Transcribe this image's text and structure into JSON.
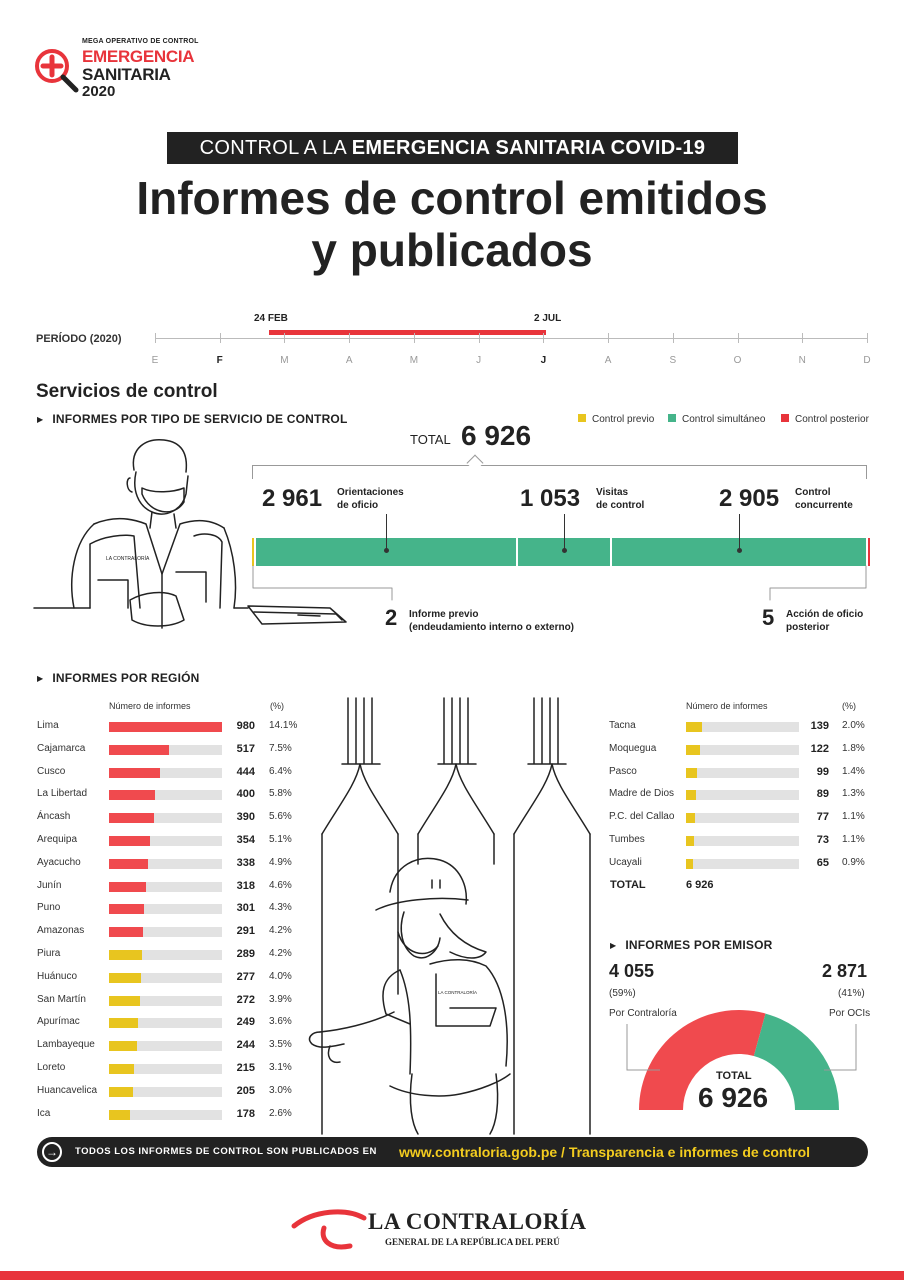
{
  "logo": {
    "mega": "MEGA OPERATIVO DE CONTROL",
    "line1": "EMERGENCIA",
    "line2": "SANITARIA",
    "year": "2020"
  },
  "banner": {
    "prefix": "CONTROL A LA ",
    "bold": "EMERGENCIA SANITARIA COVID-19"
  },
  "title": {
    "line1": "Informes de control emitidos",
    "line2": "y publicados"
  },
  "period": {
    "label": "PERÍODO  (2020)",
    "start_label": "24 FEB",
    "end_label": "2 JUL",
    "months": [
      "E",
      "F",
      "M",
      "A",
      "M",
      "J",
      "J",
      "A",
      "S",
      "O",
      "N",
      "D"
    ],
    "start_fraction": 0.1608,
    "end_fraction": 0.5492
  },
  "services": {
    "section_title": "Servicios de control",
    "head": "INFORMES POR TIPO DE SERVICIO DE CONTROL",
    "legend": [
      {
        "label": "Control previo",
        "color": "#e8c51f"
      },
      {
        "label": "Control simultáneo",
        "color": "#45b48a"
      },
      {
        "label": "Control posterior",
        "color": "#e8343b"
      }
    ],
    "total_label": "TOTAL",
    "total_value": "6 926",
    "items": [
      {
        "value": "2 961",
        "label1": "Orientaciones",
        "label2": "de oficio",
        "n": 2961
      },
      {
        "value": "1 053",
        "label1": "Visitas",
        "label2": "de control",
        "n": 1053
      },
      {
        "value": "2 905",
        "label1": "Control",
        "label2": "concurrente",
        "n": 2905
      }
    ],
    "previo": {
      "value": "2",
      "label1": "Informe previo",
      "label2": "(endeudamiento interno o externo)",
      "n": 2
    },
    "posterior": {
      "value": "5",
      "label1": "Acción de oficio",
      "label2": "posterior",
      "n": 5
    }
  },
  "regions": {
    "head": "INFORMES POR REGIÓN",
    "col_num": "Número de informes",
    "col_pct": "(%)",
    "max": 980,
    "left": [
      {
        "name": "Lima",
        "value": 980,
        "pct": "14.1%",
        "color": "#f04a4e"
      },
      {
        "name": "Cajamarca",
        "value": 517,
        "pct": "7.5%",
        "color": "#f04a4e"
      },
      {
        "name": "Cusco",
        "value": 444,
        "pct": "6.4%",
        "color": "#f04a4e"
      },
      {
        "name": "La Libertad",
        "value": 400,
        "pct": "5.8%",
        "color": "#f04a4e"
      },
      {
        "name": "Áncash",
        "value": 390,
        "pct": "5.6%",
        "color": "#f04a4e"
      },
      {
        "name": "Arequipa",
        "value": 354,
        "pct": "5.1%",
        "color": "#f04a4e"
      },
      {
        "name": "Ayacucho",
        "value": 338,
        "pct": "4.9%",
        "color": "#f04a4e"
      },
      {
        "name": "Junín",
        "value": 318,
        "pct": "4.6%",
        "color": "#f04a4e"
      },
      {
        "name": "Puno",
        "value": 301,
        "pct": "4.3%",
        "color": "#f04a4e"
      },
      {
        "name": "Amazonas",
        "value": 291,
        "pct": "4.2%",
        "color": "#f04a4e"
      },
      {
        "name": "Piura",
        "value": 289,
        "pct": "4.2%",
        "color": "#e8c51f"
      },
      {
        "name": "Huánuco",
        "value": 277,
        "pct": "4.0%",
        "color": "#e8c51f"
      },
      {
        "name": "San Martín",
        "value": 272,
        "pct": "3.9%",
        "color": "#e8c51f"
      },
      {
        "name": "Apurímac",
        "value": 249,
        "pct": "3.6%",
        "color": "#e8c51f"
      },
      {
        "name": "Lambayeque",
        "value": 244,
        "pct": "3.5%",
        "color": "#e8c51f"
      },
      {
        "name": "Loreto",
        "value": 215,
        "pct": "3.1%",
        "color": "#e8c51f"
      },
      {
        "name": "Huancavelica",
        "value": 205,
        "pct": "3.0%",
        "color": "#e8c51f"
      },
      {
        "name": "Ica",
        "value": 178,
        "pct": "2.6%",
        "color": "#e8c51f"
      }
    ],
    "right": [
      {
        "name": "Tacna",
        "value": 139,
        "pct": "2.0%",
        "color": "#e8c51f"
      },
      {
        "name": "Moquegua",
        "value": 122,
        "pct": "1.8%",
        "color": "#e8c51f"
      },
      {
        "name": "Pasco",
        "value": 99,
        "pct": "1.4%",
        "color": "#e8c51f"
      },
      {
        "name": "Madre de Dios",
        "value": 89,
        "pct": "1.3%",
        "color": "#e8c51f"
      },
      {
        "name": "P.C. del Callao",
        "value": 77,
        "pct": "1.1%",
        "color": "#e8c51f"
      },
      {
        "name": "Tumbes",
        "value": 73,
        "pct": "1.1%",
        "color": "#e8c51f"
      },
      {
        "name": "Ucayali",
        "value": 65,
        "pct": "0.9%",
        "color": "#e8c51f"
      }
    ],
    "total_label": "TOTAL",
    "total_value": "6 926"
  },
  "emisor": {
    "head": "INFORMES POR EMISOR",
    "contraloria": {
      "value": "4 055",
      "pct": "(59%)",
      "label": "Por Contraloría",
      "n": 4055,
      "color": "#f04a4e"
    },
    "ocis": {
      "value": "2 871",
      "pct": "(41%)",
      "label": "Por OCIs",
      "n": 2871,
      "color": "#45b48a"
    },
    "total_label": "TOTAL",
    "total_value": "6 926"
  },
  "footer": {
    "text": "TODOS LOS INFORMES DE CONTROL SON PUBLICADOS EN",
    "link": "www.contraloria.gob.pe / Transparencia e informes de control"
  },
  "bottom_logo": {
    "name": "LA CONTRALORÍA",
    "sub": "GENERAL DE LA REPÚBLICA DEL PERÚ"
  },
  "chart_data": [
    {
      "type": "bar",
      "title": "INFORMES POR TIPO DE SERVICIO DE CONTROL",
      "categories": [
        "Informe previo",
        "Orientaciones de oficio",
        "Visitas de control",
        "Control concurrente",
        "Acción de oficio posterior"
      ],
      "values": [
        2,
        2961,
        1053,
        2905,
        5
      ],
      "legend": [
        "Control previo",
        "Control simultáneo",
        "Control posterior"
      ]
    },
    {
      "type": "bar",
      "title": "INFORMES POR REGIÓN",
      "categories": [
        "Lima",
        "Cajamarca",
        "Cusco",
        "La Libertad",
        "Áncash",
        "Arequipa",
        "Ayacucho",
        "Junín",
        "Puno",
        "Amazonas",
        "Piura",
        "Huánuco",
        "San Martín",
        "Apurímac",
        "Lambayeque",
        "Loreto",
        "Huancavelica",
        "Ica",
        "Tacna",
        "Moquegua",
        "Pasco",
        "Madre de Dios",
        "P.C. del Callao",
        "Tumbes",
        "Ucayali"
      ],
      "values": [
        980,
        517,
        444,
        400,
        390,
        354,
        338,
        318,
        301,
        291,
        289,
        277,
        272,
        249,
        244,
        215,
        205,
        178,
        139,
        122,
        99,
        89,
        77,
        73,
        65
      ]
    },
    {
      "type": "pie",
      "title": "INFORMES POR EMISOR",
      "categories": [
        "Por Contraloría",
        "Por OCIs"
      ],
      "values": [
        4055,
        2871
      ]
    }
  ]
}
